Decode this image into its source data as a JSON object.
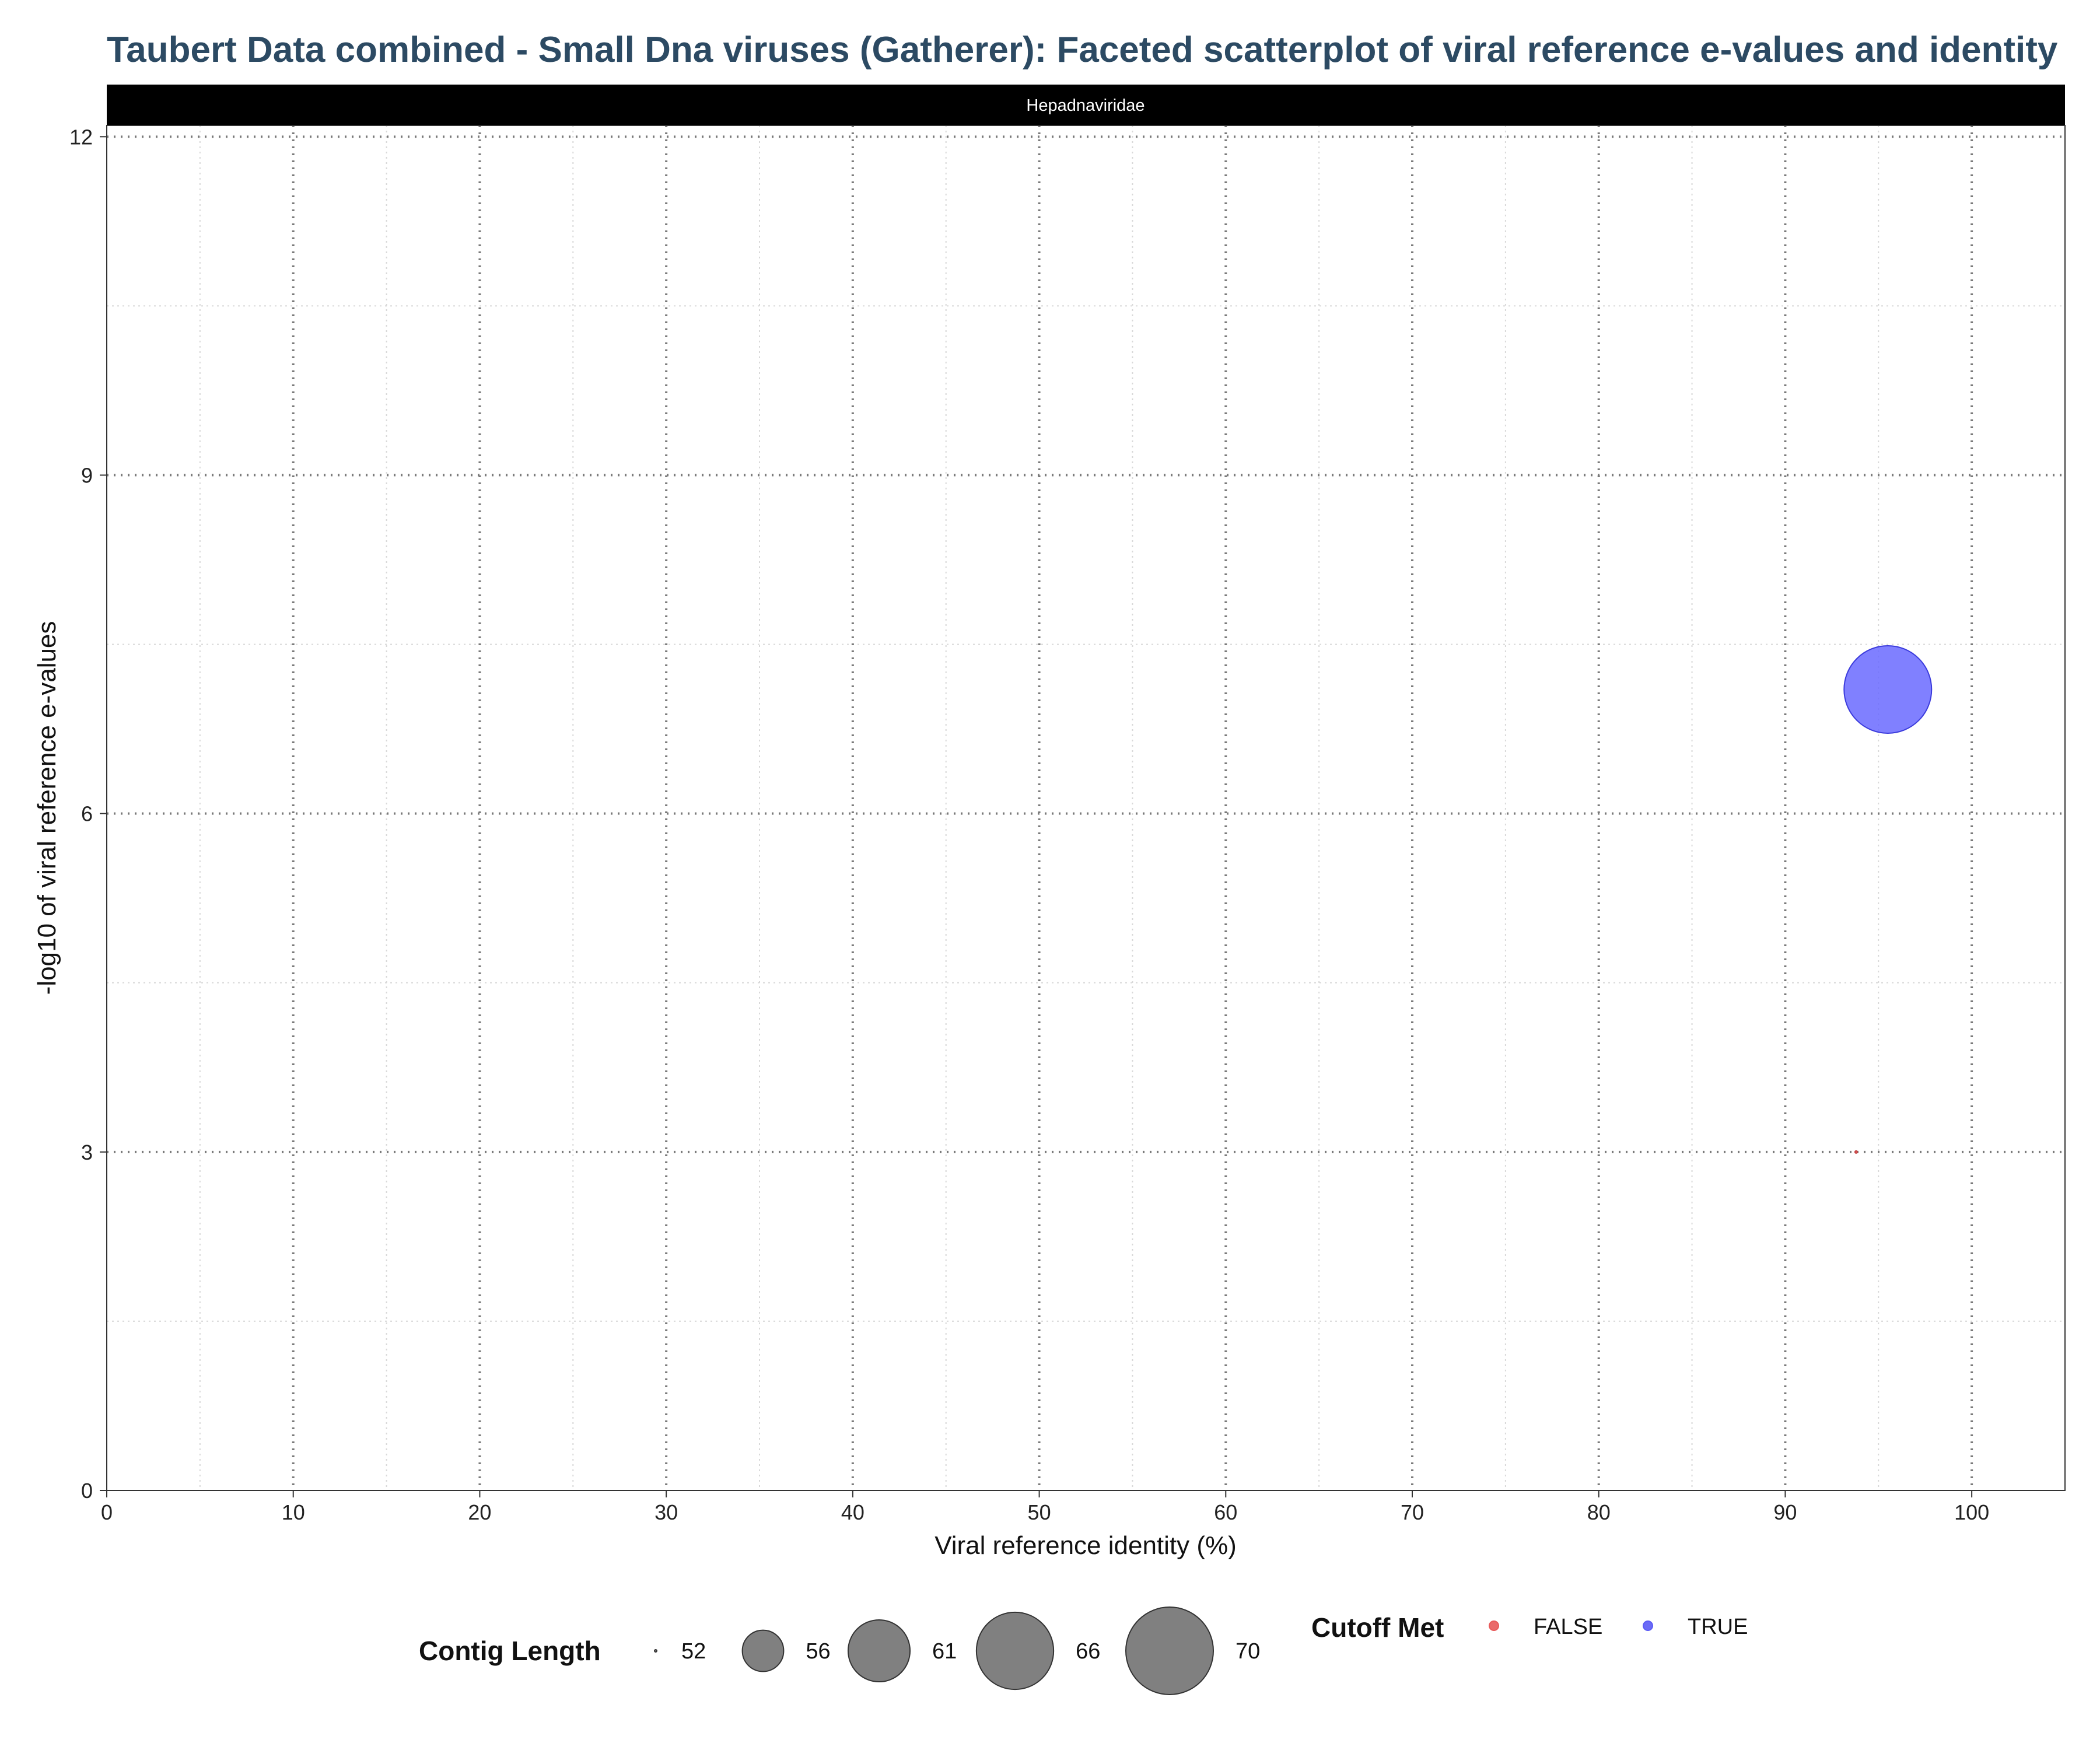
{
  "chart_data": {
    "type": "scatter",
    "title": "Taubert Data combined - Small Dna viruses (Gatherer): Faceted scatterplot of viral reference e-values and identity",
    "facet": "Hepadnaviridae",
    "xlabel": "Viral reference identity (%)",
    "ylabel": "-log10 of viral reference e-values",
    "xlim": [
      0,
      105
    ],
    "ylim": [
      0,
      12.1
    ],
    "x_ticks": [
      0,
      10,
      20,
      30,
      40,
      50,
      60,
      70,
      80,
      90,
      100
    ],
    "y_ticks": [
      0,
      3,
      6,
      9,
      12
    ],
    "x_tick_labels": [
      "0",
      "10",
      "20",
      "30",
      "40",
      "50",
      "60",
      "70",
      "80",
      "90",
      "100"
    ],
    "y_tick_labels": [
      "0",
      "3",
      "6",
      "9",
      "12"
    ],
    "grid": true,
    "reference_lines_y": [
      3,
      6,
      9,
      12
    ],
    "reference_lines_x": [
      10,
      20,
      30,
      40,
      50,
      60,
      70,
      80,
      90,
      100
    ],
    "points": [
      {
        "x": 95.5,
        "y": 7.1,
        "contig_length": 70,
        "cutoff_met": "TRUE"
      },
      {
        "x": 93.8,
        "y": 3.0,
        "contig_length": 52,
        "cutoff_met": "FALSE"
      }
    ],
    "legend": {
      "placement": "bottom",
      "size": {
        "title": "Contig Length",
        "values": [
          52,
          56,
          61,
          66,
          70
        ],
        "labels": [
          "52",
          "56",
          "61",
          "66",
          "70"
        ]
      },
      "color": {
        "title": "Cutoff Met",
        "entries": [
          {
            "label": "FALSE",
            "color": "#e85a5a"
          },
          {
            "label": "TRUE",
            "color": "#5b5bf5"
          }
        ]
      }
    },
    "colors": {
      "TRUE": "#6a6aff",
      "FALSE": "#e85a5a",
      "size_key": "#555555"
    }
  }
}
